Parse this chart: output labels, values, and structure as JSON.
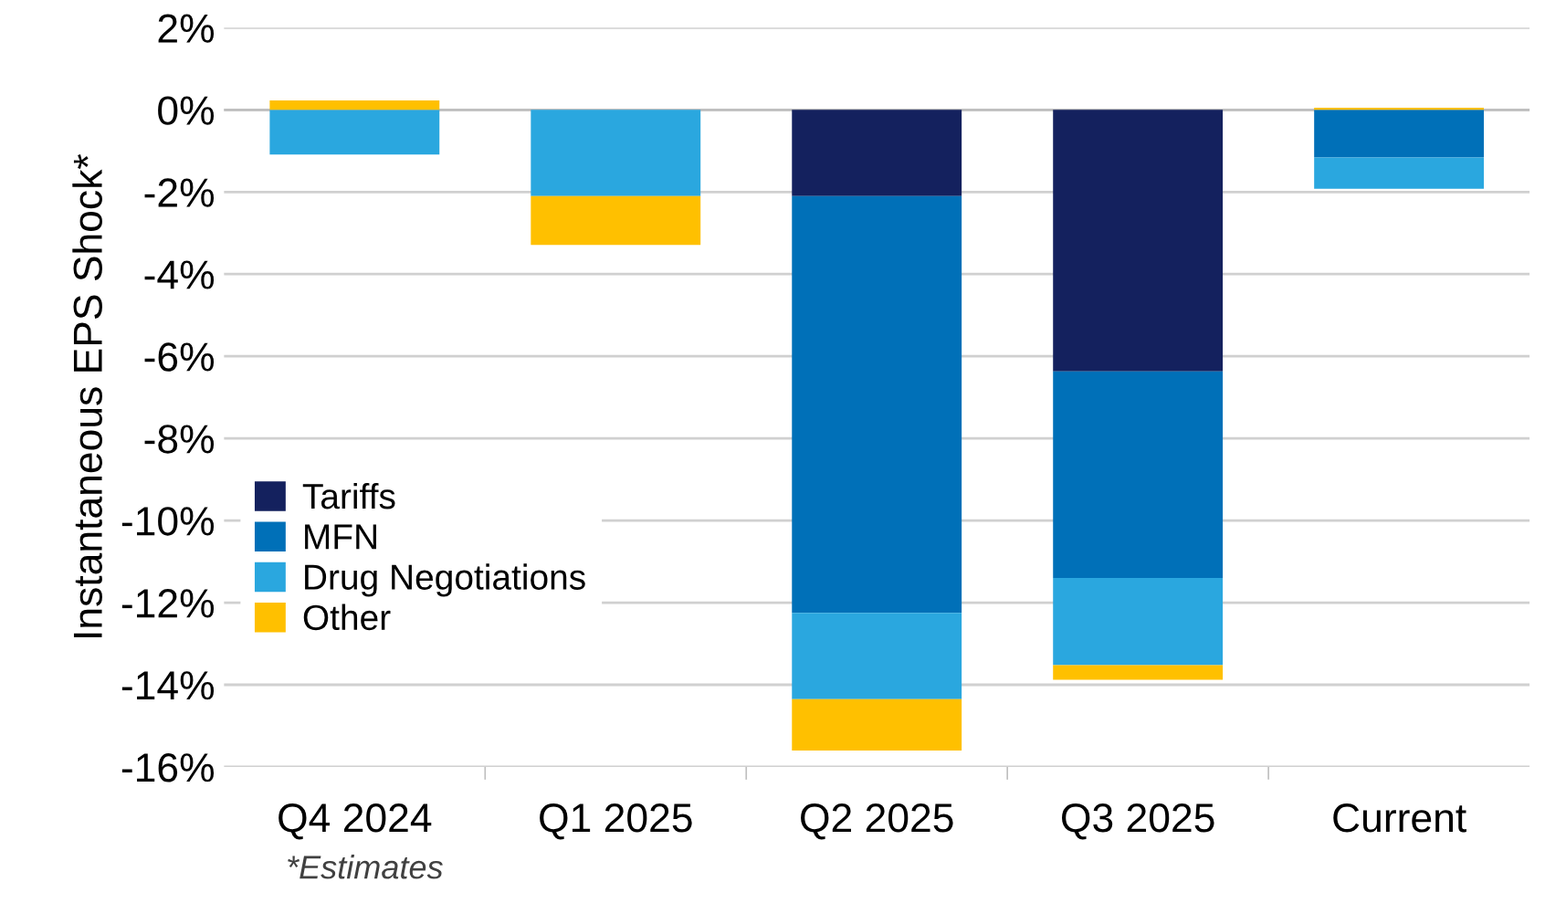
{
  "chart_data": {
    "type": "bar",
    "stacked": true,
    "ylabel": "Instantaneous EPS Shock*",
    "categories": [
      "Q4 2024",
      "Q1 2025",
      "Q2 2025",
      "Q3 2025",
      "Current"
    ],
    "series": [
      {
        "name": "Tariffs",
        "color": "#14215e",
        "values": [
          0,
          0,
          -2.1,
          -6.37,
          0
        ]
      },
      {
        "name": "MFN",
        "color": "#0070b8",
        "values": [
          0,
          0,
          -10.15,
          -5.03,
          -1.16
        ]
      },
      {
        "name": "Drug Negotiations",
        "color": "#2aa7df",
        "values": [
          -1.09,
          -2.1,
          -2.1,
          -2.12,
          -0.76
        ]
      },
      {
        "name": "Other",
        "color": "#ffc000",
        "values": [
          0.23,
          -1.19,
          -1.25,
          -0.36,
          0.05
        ]
      }
    ],
    "ylim": [
      -16,
      2
    ],
    "yticks": [
      {
        "value": -16,
        "label": "-16%"
      },
      {
        "value": -14,
        "label": "-14%"
      },
      {
        "value": -12,
        "label": "-12%"
      },
      {
        "value": -10,
        "label": "-10%"
      },
      {
        "value": -8,
        "label": "-8%"
      },
      {
        "value": -6,
        "label": "-6%"
      },
      {
        "value": -4,
        "label": "-4%"
      },
      {
        "value": -2,
        "label": "-2%"
      },
      {
        "value": 0,
        "label": "0%"
      },
      {
        "value": 2,
        "label": "2%"
      }
    ],
    "grid": "y",
    "legend": "left",
    "annotations": [
      "*Estimates"
    ]
  }
}
